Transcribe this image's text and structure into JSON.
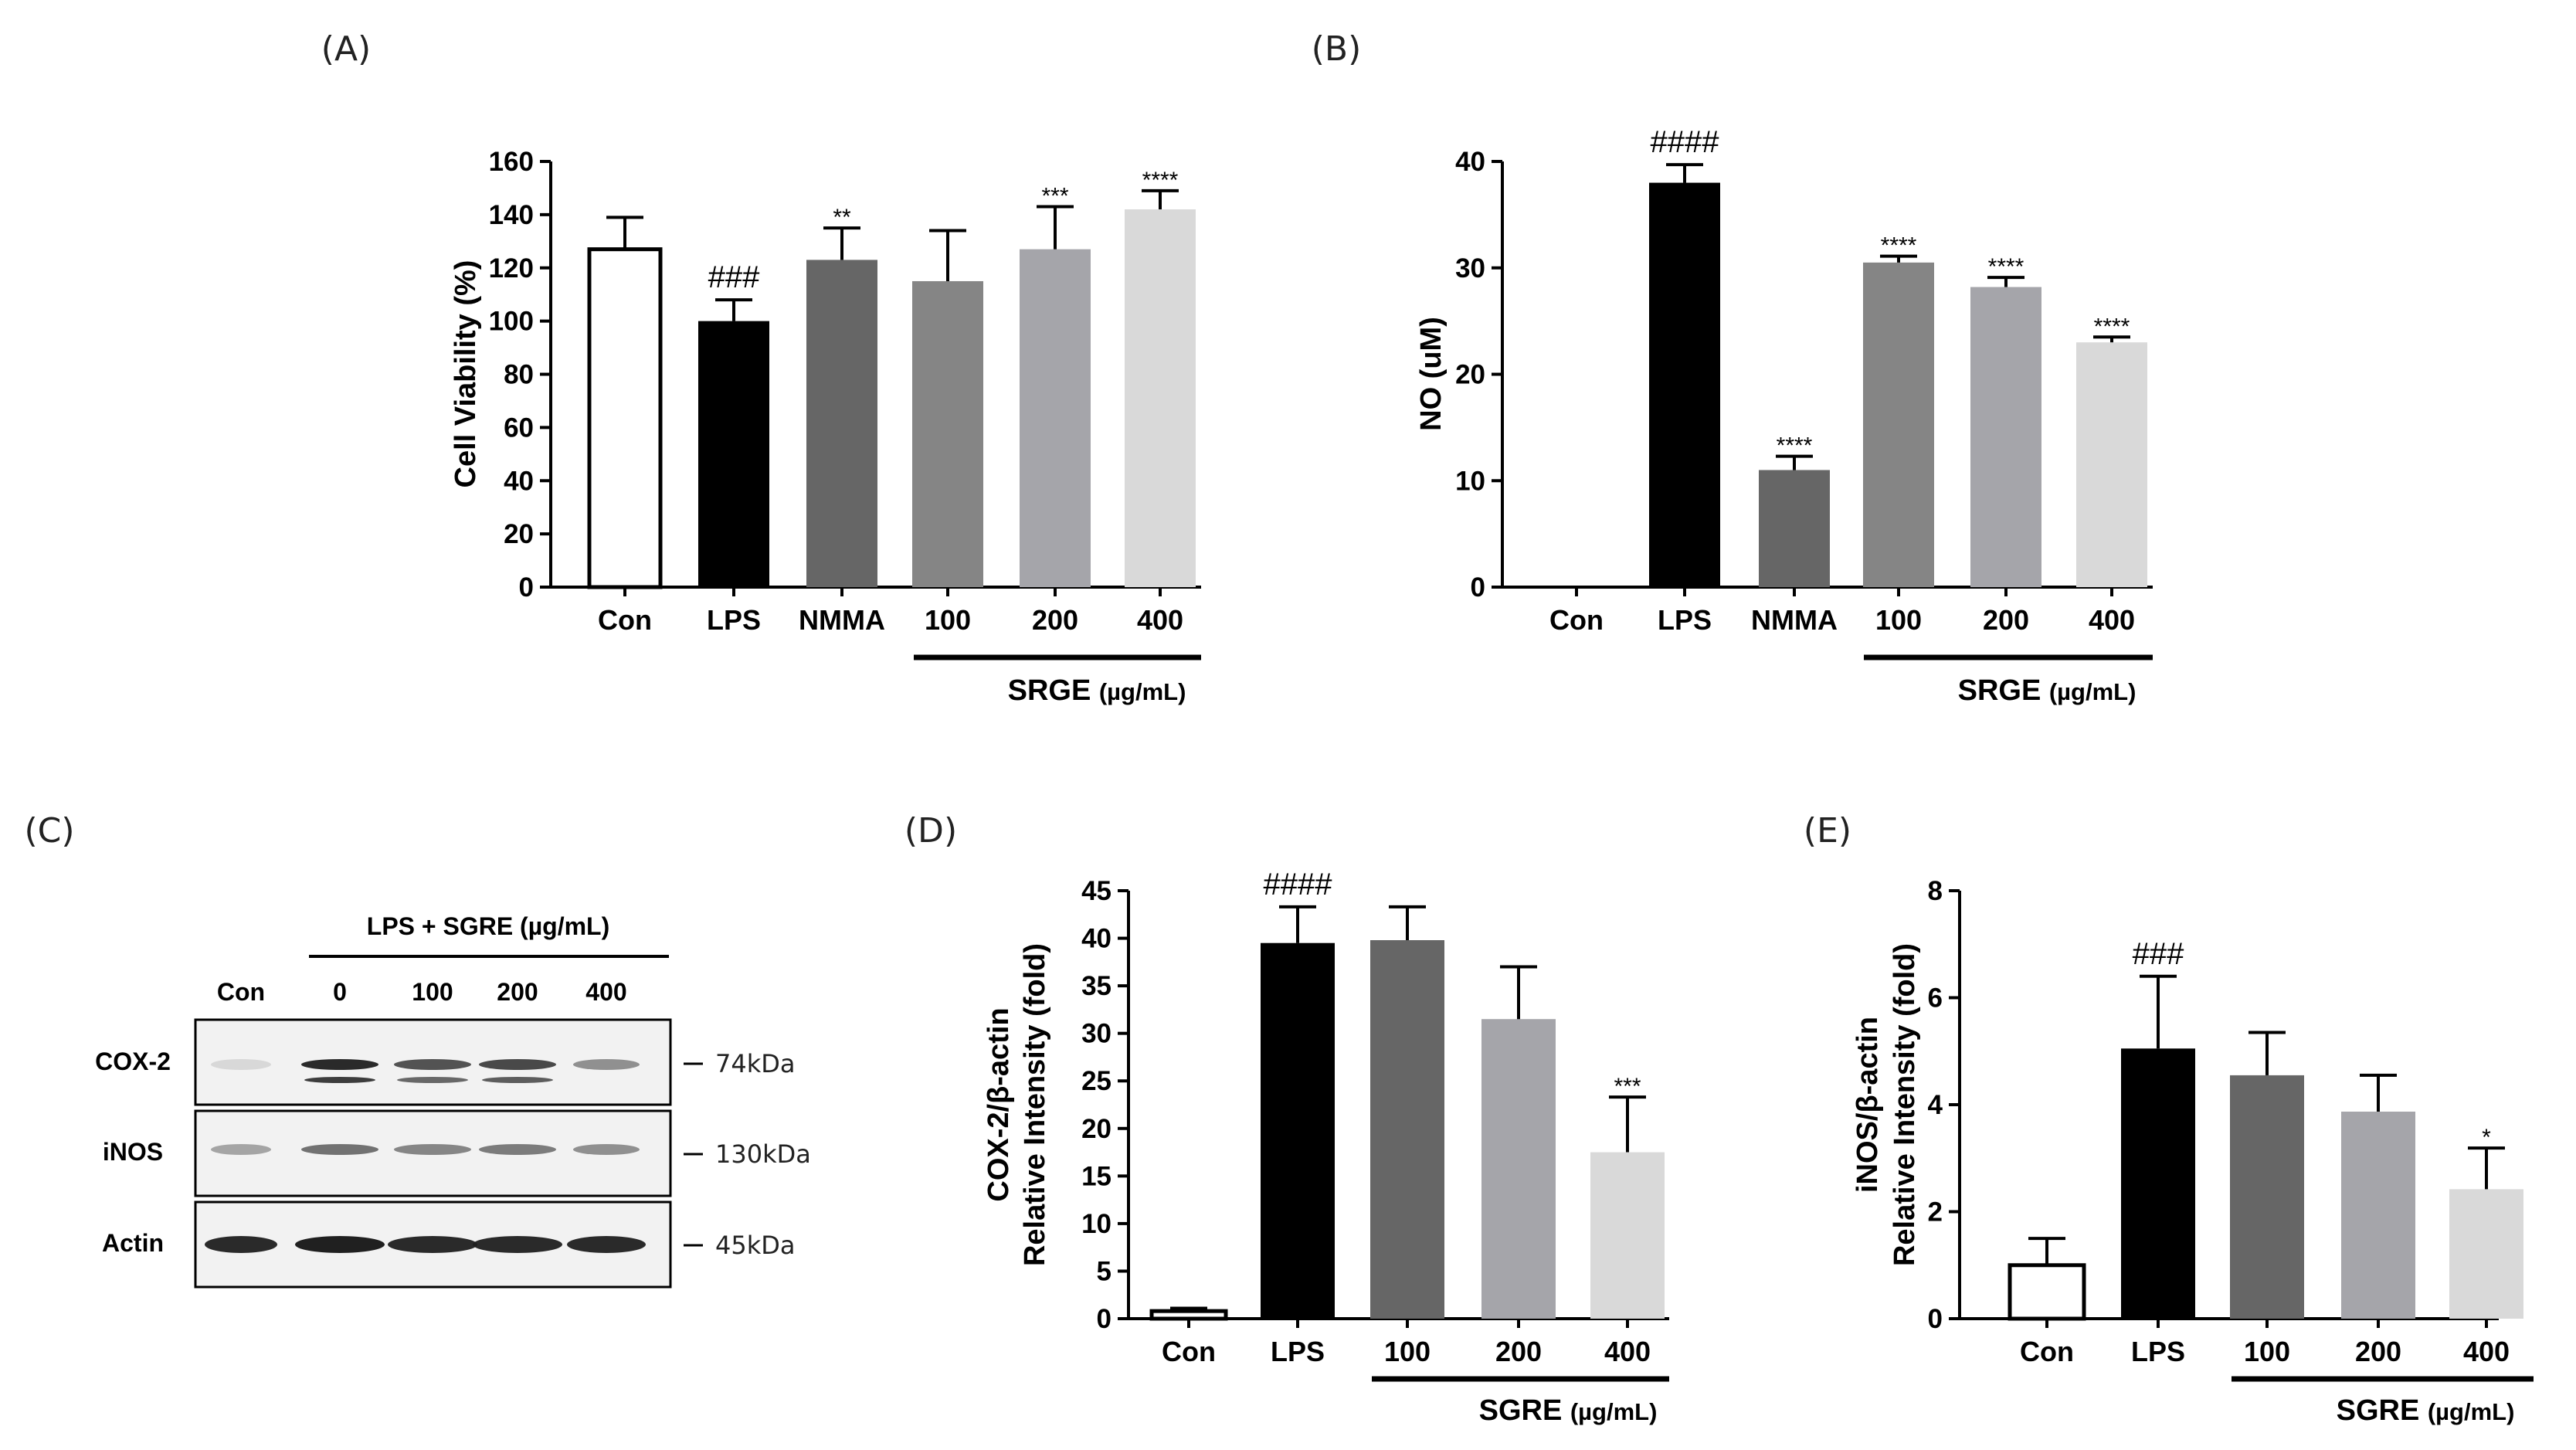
{
  "chart_data": [
    {
      "id": "A",
      "type": "bar",
      "panel_label": "(A)",
      "ylabel": "Cell Viability (%)",
      "ylim": [
        0,
        160
      ],
      "yticks": [
        0,
        20,
        40,
        60,
        80,
        100,
        120,
        140,
        160
      ],
      "categories": [
        "Con",
        "LPS",
        "NMMA",
        "100",
        "200",
        "400"
      ],
      "values": [
        127,
        100,
        123,
        115,
        127,
        142
      ],
      "errors": [
        12,
        8,
        12,
        19,
        16,
        7
      ],
      "annotations": [
        "",
        "###",
        "**",
        "",
        "***",
        "****"
      ],
      "colors": [
        "#ffffff",
        "#000000",
        "#666666",
        "#858585",
        "#a5a5aa",
        "#d9d9d9"
      ],
      "group_label": "SRGE",
      "group_unit": "(µg/mL)",
      "group_span": [
        3,
        5
      ]
    },
    {
      "id": "B",
      "type": "bar",
      "panel_label": "(B)",
      "ylabel": "NO (uM)",
      "ylim": [
        0,
        40
      ],
      "yticks": [
        0,
        10,
        20,
        30,
        40
      ],
      "categories": [
        "Con",
        "LPS",
        "NMMA",
        "100",
        "200",
        "400"
      ],
      "values": [
        0,
        38,
        11,
        30.5,
        28.2,
        23
      ],
      "errors": [
        0,
        1.7,
        1.3,
        0.6,
        0.9,
        0.5
      ],
      "annotations": [
        "",
        "####",
        "****",
        "****",
        "****",
        "****"
      ],
      "colors": [
        "#ffffff",
        "#000000",
        "#666666",
        "#858585",
        "#a5a5aa",
        "#d9d9d9"
      ],
      "group_label": "SRGE",
      "group_unit": "(µg/mL)",
      "group_span": [
        3,
        5
      ]
    },
    {
      "id": "D",
      "type": "bar",
      "panel_label": "(D)",
      "ylabel": "COX-2/β-actin",
      "ylabel2": "Relative Intensity (fold)",
      "ylim": [
        0,
        45
      ],
      "yticks": [
        0,
        5,
        10,
        15,
        20,
        25,
        30,
        35,
        40,
        45
      ],
      "categories": [
        "Con",
        "LPS",
        "100",
        "200",
        "400"
      ],
      "values": [
        0.8,
        39.5,
        39.8,
        31.5,
        17.5
      ],
      "errors": [
        0.3,
        3.8,
        3.5,
        5.5,
        5.8
      ],
      "annotations": [
        "",
        "####",
        "",
        "",
        "***"
      ],
      "colors": [
        "#ffffff",
        "#000000",
        "#666666",
        "#a5a5aa",
        "#d9d9d9"
      ],
      "group_label": "SGRE",
      "group_unit": "(µg/mL)",
      "group_span": [
        2,
        4
      ]
    },
    {
      "id": "E",
      "type": "bar",
      "panel_label": "(E)",
      "ylabel": "iNOS/β-actin",
      "ylabel2": "Relative Intensity (fold)",
      "ylim": [
        0,
        8
      ],
      "yticks": [
        0,
        2,
        4,
        6,
        8
      ],
      "categories": [
        "Con",
        "LPS",
        "100",
        "200",
        "400"
      ],
      "values": [
        1,
        5.05,
        4.55,
        3.87,
        2.42
      ],
      "errors": [
        0.5,
        1.35,
        0.8,
        0.68,
        0.77
      ],
      "annotations": [
        "",
        "###",
        "",
        "",
        "*"
      ],
      "colors": [
        "#ffffff",
        "#000000",
        "#666666",
        "#a5a5aa",
        "#d9d9d9"
      ],
      "group_label": "SGRE",
      "group_unit": "(µg/mL)",
      "group_span": [
        2,
        4
      ]
    }
  ],
  "blot": {
    "panel_label": "(C)",
    "header": "LPS + SGRE (µg/mL)",
    "lanes": [
      "Con",
      "0",
      "100",
      "200",
      "400"
    ],
    "rows": [
      {
        "name": "COX-2",
        "kda": "74kDa",
        "intensity": [
          0.1,
          0.95,
          0.75,
          0.8,
          0.45
        ]
      },
      {
        "name": "iNOS",
        "kda": "130kDa",
        "intensity": [
          0.35,
          0.6,
          0.5,
          0.55,
          0.45
        ]
      },
      {
        "name": "Actin",
        "kda": "45kDa",
        "intensity": [
          0.95,
          1.0,
          0.95,
          0.95,
          0.95
        ]
      }
    ]
  }
}
